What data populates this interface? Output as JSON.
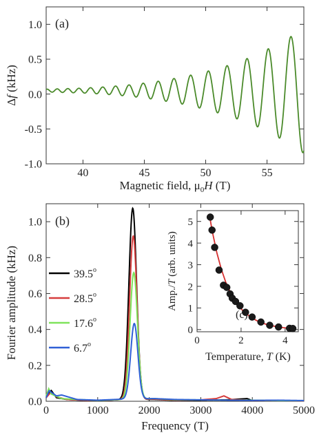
{
  "chart_data": [
    {
      "type": "line",
      "panel_label": "(a)",
      "xlabel_parts": [
        "Magnetic field, μ",
        "0",
        "H",
        " (T)"
      ],
      "ylabel_parts": [
        "Δ",
        "f",
        " (kHz)"
      ],
      "xlim": [
        37,
        58
      ],
      "ylim": [
        -1.0,
        1.25
      ],
      "xticks": [
        40,
        45,
        50,
        55
      ],
      "yticks": [
        -1.0,
        -0.5,
        0.0,
        0.5,
        1.0
      ],
      "xtick_labels": [
        "40",
        "45",
        "50",
        "55"
      ],
      "ytick_labels": [
        "-1.0",
        "-0.5",
        "0.0",
        "0.5",
        "1.0"
      ],
      "series": [
        {
          "color": "#4a8a2a",
          "oscillation": {
            "field_start": 37,
            "field_end": 58,
            "frequency_T": 1700,
            "offset_kHz": 0.05,
            "amplitude_kHz": [
              [
                37,
                0.02
              ],
              [
                40,
                0.035
              ],
              [
                42,
                0.055
              ],
              [
                44,
                0.085
              ],
              [
                46,
                0.13
              ],
              [
                48,
                0.19
              ],
              [
                50,
                0.27
              ],
              [
                52,
                0.37
              ],
              [
                54,
                0.5
              ],
              [
                56,
                0.68
              ],
              [
                57,
                0.78
              ],
              [
                58,
                0.9
              ]
            ]
          }
        }
      ]
    },
    {
      "type": "line",
      "panel_label": "(b)",
      "xlabel": "Frequency (T)",
      "ylabel": "Fourier amplitude (kHz)",
      "xlim": [
        0,
        5000
      ],
      "ylim": [
        0,
        1.1
      ],
      "xticks": [
        0,
        1000,
        2000,
        3000,
        4000,
        5000
      ],
      "yticks": [
        0.0,
        0.2,
        0.4,
        0.6,
        0.8,
        1.0
      ],
      "xtick_labels": [
        "0",
        "1000",
        "2000",
        "3000",
        "4000",
        "5000"
      ],
      "ytick_labels": [
        "0.0",
        "0.2",
        "0.4",
        "0.6",
        "0.8",
        "1.0"
      ],
      "legend_position": "left",
      "series": [
        {
          "name": "39.5°",
          "label_value": "39.5",
          "color": "#000000",
          "peak_freq": 1680,
          "peak_amp": 1.065,
          "peak_width": 75,
          "noise": [
            [
              0,
              0.02
            ],
            [
              60,
              0.05
            ],
            [
              100,
              0.06
            ],
            [
              200,
              0.02
            ],
            [
              400,
              0.01
            ],
            [
              800,
              0.004
            ],
            [
              1200,
              0.006
            ],
            [
              1500,
              0.01
            ],
            [
              2100,
              0.01
            ],
            [
              2500,
              0.005
            ],
            [
              3000,
              0.006
            ],
            [
              3500,
              0.008
            ],
            [
              3900,
              0.015
            ],
            [
              4000,
              0.004
            ],
            [
              4500,
              0.004
            ],
            [
              5000,
              0.003
            ]
          ]
        },
        {
          "name": "28.5°",
          "label_value": "28.5",
          "color": "#d63c3c",
          "peak_freq": 1690,
          "peak_amp": 0.91,
          "peak_width": 72,
          "noise": [
            [
              0,
              0.02
            ],
            [
              60,
              0.04
            ],
            [
              100,
              0.05
            ],
            [
              200,
              0.025
            ],
            [
              400,
              0.01
            ],
            [
              800,
              0.005
            ],
            [
              1200,
              0.006
            ],
            [
              1500,
              0.01
            ],
            [
              2100,
              0.012
            ],
            [
              2500,
              0.006
            ],
            [
              3000,
              0.008
            ],
            [
              3300,
              0.015
            ],
            [
              3450,
              0.03
            ],
            [
              3600,
              0.01
            ],
            [
              4000,
              0.005
            ],
            [
              4500,
              0.004
            ],
            [
              5000,
              0.003
            ]
          ]
        },
        {
          "name": "17.6°",
          "label_value": "17.6",
          "color": "#7ee35a",
          "peak_freq": 1700,
          "peak_amp": 0.705,
          "peak_width": 72,
          "noise": [
            [
              0,
              0.03
            ],
            [
              50,
              0.07
            ],
            [
              100,
              0.04
            ],
            [
              300,
              0.015
            ],
            [
              600,
              0.01
            ],
            [
              1000,
              0.005
            ],
            [
              1500,
              0.01
            ],
            [
              2100,
              0.015
            ],
            [
              2500,
              0.008
            ],
            [
              3000,
              0.008
            ],
            [
              3500,
              0.006
            ],
            [
              4000,
              0.006
            ],
            [
              4500,
              0.004
            ],
            [
              5000,
              0.004
            ]
          ]
        },
        {
          "name": "6.7°",
          "label_value": "6.7",
          "color": "#2f5fd6",
          "peak_freq": 1710,
          "peak_amp": 0.42,
          "peak_width": 70,
          "noise": [
            [
              0,
              0.02
            ],
            [
              60,
              0.06
            ],
            [
              100,
              0.05
            ],
            [
              200,
              0.03
            ],
            [
              300,
              0.035
            ],
            [
              600,
              0.01
            ],
            [
              1000,
              0.006
            ],
            [
              1500,
              0.012
            ],
            [
              2100,
              0.015
            ],
            [
              2500,
              0.01
            ],
            [
              3000,
              0.008
            ],
            [
              3500,
              0.006
            ],
            [
              4000,
              0.005
            ],
            [
              4500,
              0.006
            ],
            [
              5000,
              0.004
            ]
          ]
        }
      ]
    },
    {
      "type": "scatter",
      "panel_label": "(c)",
      "xlabel_parts": [
        "Temperature, ",
        "T",
        " (K)"
      ],
      "ylabel_parts": [
        "Amp./",
        "T",
        " (arb. units)"
      ],
      "xlim": [
        0,
        4.6
      ],
      "ylim": [
        -0.1,
        5.5
      ],
      "xticks": [
        0,
        2,
        4
      ],
      "yticks": [
        0,
        1,
        2,
        3,
        4,
        5
      ],
      "xtick_labels": [
        "0",
        "2",
        "4"
      ],
      "ytick_labels": [
        "0",
        "1",
        "2",
        "3",
        "4",
        "5"
      ],
      "points": {
        "x": [
          0.6,
          0.68,
          0.8,
          1.0,
          1.2,
          1.35,
          1.5,
          1.6,
          1.75,
          1.95,
          2.2,
          2.5,
          2.9,
          3.3,
          3.7,
          4.2,
          4.35
        ],
        "y": [
          5.2,
          4.6,
          3.8,
          2.75,
          2.05,
          1.95,
          1.65,
          1.45,
          1.3,
          1.1,
          0.8,
          0.58,
          0.35,
          0.2,
          0.12,
          0.06,
          0.05
        ],
        "color": "#1a1a1a"
      },
      "fit": {
        "color": "#d63030",
        "x": [
          0.55,
          0.7,
          0.9,
          1.1,
          1.3,
          1.5,
          1.7,
          1.9,
          2.1,
          2.4,
          2.7,
          3.0,
          3.3,
          3.6,
          3.9,
          4.2,
          4.4
        ],
        "y": [
          5.35,
          4.5,
          3.55,
          2.8,
          2.2,
          1.75,
          1.38,
          1.08,
          0.85,
          0.6,
          0.42,
          0.29,
          0.2,
          0.14,
          0.09,
          0.06,
          0.04
        ]
      }
    }
  ]
}
